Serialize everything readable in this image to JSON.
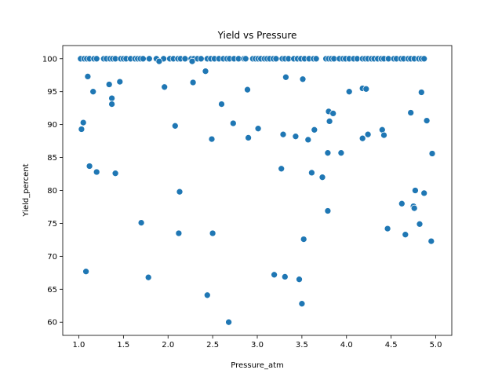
{
  "chart_data": {
    "type": "scatter",
    "title": "Yield vs Pressure",
    "xlabel": "Pressure_atm",
    "ylabel": "Yield_percent",
    "xlim": [
      0.82,
      5.18
    ],
    "ylim": [
      58.0,
      102.0
    ],
    "xticks": [
      "1.0",
      "1.5",
      "2.0",
      "2.5",
      "3.0",
      "3.5",
      "4.0",
      "4.5",
      "5.0"
    ],
    "yticks": [
      "60",
      "65",
      "70",
      "75",
      "80",
      "85",
      "90",
      "95",
      "100"
    ],
    "grid": false,
    "legend": "none",
    "marker_color": "#1f77b4",
    "marker_edge": "#ffffff",
    "points": [
      [
        1.02,
        100
      ],
      [
        1.06,
        100
      ],
      [
        1.09,
        100
      ],
      [
        1.12,
        100
      ],
      [
        1.17,
        100
      ],
      [
        1.2,
        100
      ],
      [
        1.28,
        100
      ],
      [
        1.31,
        100
      ],
      [
        1.35,
        100
      ],
      [
        1.38,
        100
      ],
      [
        1.41,
        100
      ],
      [
        1.47,
        100
      ],
      [
        1.5,
        100
      ],
      [
        1.53,
        100
      ],
      [
        1.58,
        100
      ],
      [
        1.63,
        100
      ],
      [
        1.66,
        100
      ],
      [
        1.69,
        100
      ],
      [
        1.72,
        100
      ],
      [
        1.79,
        100
      ],
      [
        1.87,
        100
      ],
      [
        1.95,
        100
      ],
      [
        2.02,
        100
      ],
      [
        2.06,
        100
      ],
      [
        2.11,
        100
      ],
      [
        2.14,
        100
      ],
      [
        2.19,
        100
      ],
      [
        2.26,
        100
      ],
      [
        2.29,
        100
      ],
      [
        2.33,
        100
      ],
      [
        2.37,
        100
      ],
      [
        2.44,
        100
      ],
      [
        2.48,
        100
      ],
      [
        2.52,
        100
      ],
      [
        2.57,
        100
      ],
      [
        2.62,
        100
      ],
      [
        2.66,
        100
      ],
      [
        2.69,
        100
      ],
      [
        2.74,
        100
      ],
      [
        2.79,
        100
      ],
      [
        2.85,
        100
      ],
      [
        2.87,
        100
      ],
      [
        2.95,
        100
      ],
      [
        2.98,
        100
      ],
      [
        3.01,
        100
      ],
      [
        3.04,
        100
      ],
      [
        3.08,
        100
      ],
      [
        3.11,
        100
      ],
      [
        3.14,
        100
      ],
      [
        3.18,
        100
      ],
      [
        3.21,
        100
      ],
      [
        3.28,
        100
      ],
      [
        3.31,
        100
      ],
      [
        3.35,
        100
      ],
      [
        3.41,
        100
      ],
      [
        3.45,
        100
      ],
      [
        3.49,
        100
      ],
      [
        3.53,
        100
      ],
      [
        3.58,
        100
      ],
      [
        3.63,
        100
      ],
      [
        3.66,
        100
      ],
      [
        3.77,
        100
      ],
      [
        3.8,
        100
      ],
      [
        3.83,
        100
      ],
      [
        3.86,
        100
      ],
      [
        3.92,
        100
      ],
      [
        3.96,
        100
      ],
      [
        3.99,
        100
      ],
      [
        4.03,
        100
      ],
      [
        4.08,
        100
      ],
      [
        4.12,
        100
      ],
      [
        4.18,
        100
      ],
      [
        4.21,
        100
      ],
      [
        4.24,
        100
      ],
      [
        4.28,
        100
      ],
      [
        4.31,
        100
      ],
      [
        4.35,
        100
      ],
      [
        4.39,
        100
      ],
      [
        4.42,
        100
      ],
      [
        4.47,
        100
      ],
      [
        4.53,
        100
      ],
      [
        4.56,
        100
      ],
      [
        4.61,
        100
      ],
      [
        4.64,
        100
      ],
      [
        4.69,
        100
      ],
      [
        4.72,
        100
      ],
      [
        4.76,
        100
      ],
      [
        4.81,
        100
      ],
      [
        4.84,
        100
      ],
      [
        4.87,
        100
      ],
      [
        1.9,
        99.6
      ],
      [
        2.27,
        99.6
      ],
      [
        1.03,
        89.3
      ],
      [
        1.05,
        90.3
      ],
      [
        1.08,
        67.7
      ],
      [
        1.1,
        97.3
      ],
      [
        1.12,
        83.7
      ],
      [
        1.16,
        95.0
      ],
      [
        1.2,
        82.8
      ],
      [
        1.34,
        96.1
      ],
      [
        1.37,
        94.0
      ],
      [
        1.37,
        93.1
      ],
      [
        1.41,
        82.6
      ],
      [
        1.46,
        96.5
      ],
      [
        1.7,
        75.1
      ],
      [
        1.78,
        66.8
      ],
      [
        1.96,
        95.7
      ],
      [
        2.08,
        89.8
      ],
      [
        2.12,
        73.5
      ],
      [
        2.13,
        79.8
      ],
      [
        2.28,
        96.4
      ],
      [
        2.42,
        98.1
      ],
      [
        2.44,
        64.1
      ],
      [
        2.49,
        87.8
      ],
      [
        2.5,
        73.5
      ],
      [
        2.6,
        93.1
      ],
      [
        2.68,
        60.0
      ],
      [
        2.73,
        90.2
      ],
      [
        2.89,
        95.3
      ],
      [
        2.9,
        88.0
      ],
      [
        3.01,
        89.4
      ],
      [
        3.19,
        67.2
      ],
      [
        3.27,
        83.3
      ],
      [
        3.29,
        88.5
      ],
      [
        3.31,
        66.9
      ],
      [
        3.32,
        97.2
      ],
      [
        3.43,
        88.2
      ],
      [
        3.47,
        66.5
      ],
      [
        3.5,
        62.8
      ],
      [
        3.51,
        96.9
      ],
      [
        3.52,
        72.6
      ],
      [
        3.57,
        87.7
      ],
      [
        3.61,
        82.7
      ],
      [
        3.64,
        89.2
      ],
      [
        3.73,
        82.0
      ],
      [
        3.79,
        85.7
      ],
      [
        3.79,
        76.9
      ],
      [
        3.8,
        92.0
      ],
      [
        3.81,
        90.5
      ],
      [
        3.85,
        91.7
      ],
      [
        3.94,
        85.7
      ],
      [
        4.03,
        95.0
      ],
      [
        4.18,
        95.5
      ],
      [
        4.18,
        87.9
      ],
      [
        4.22,
        95.4
      ],
      [
        4.24,
        88.5
      ],
      [
        4.4,
        89.2
      ],
      [
        4.42,
        88.4
      ],
      [
        4.46,
        74.2
      ],
      [
        4.62,
        78.0
      ],
      [
        4.66,
        73.3
      ],
      [
        4.72,
        91.8
      ],
      [
        4.75,
        77.6
      ],
      [
        4.76,
        77.3
      ],
      [
        4.77,
        80.0
      ],
      [
        4.82,
        74.9
      ],
      [
        4.84,
        94.9
      ],
      [
        4.87,
        79.6
      ],
      [
        4.9,
        90.6
      ],
      [
        4.95,
        72.3
      ],
      [
        4.96,
        85.6
      ]
    ]
  }
}
